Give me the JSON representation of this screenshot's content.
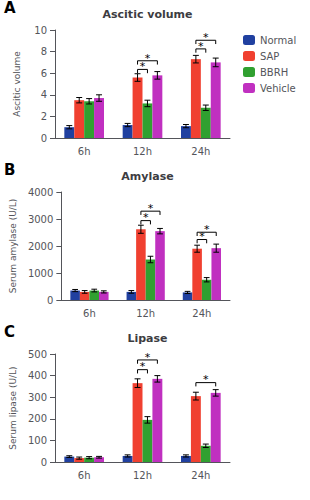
{
  "chart_data": [
    {
      "type": "bar",
      "title": "Ascitic volume",
      "y_label": "Ascitic volume",
      "categories": [
        "6h",
        "12h",
        "24h"
      ],
      "series": [
        {
          "name": "Normal",
          "color": "#2040a0",
          "values": [
            1.0,
            1.2,
            1.1
          ],
          "errors": [
            0.15,
            0.15,
            0.15
          ]
        },
        {
          "name": "SAP",
          "color": "#f04030",
          "values": [
            3.5,
            5.6,
            7.3
          ],
          "errors": [
            0.25,
            0.35,
            0.35
          ]
        },
        {
          "name": "BBRH",
          "color": "#30a030",
          "values": [
            3.4,
            3.2,
            2.8
          ],
          "errors": [
            0.25,
            0.3,
            0.25
          ]
        },
        {
          "name": "Vehicle",
          "color": "#c030c0",
          "values": [
            3.7,
            5.8,
            7.0
          ],
          "errors": [
            0.3,
            0.35,
            0.4
          ]
        }
      ],
      "ylim": [
        0,
        10
      ],
      "yticks": [
        0,
        2,
        4,
        6,
        8,
        10
      ],
      "grid": false,
      "legend": "right",
      "annotations": [
        {
          "text": "A"
        },
        {
          "text": "*",
          "category": "12h",
          "from": "SAP",
          "to": "BBRH",
          "y": 6.0
        },
        {
          "text": "*",
          "category": "12h",
          "from": "SAP",
          "to": "Vehicle",
          "y": 6.8
        },
        {
          "text": "*",
          "category": "24h",
          "from": "SAP",
          "to": "BBRH",
          "y": 7.9
        },
        {
          "text": "*",
          "category": "24h",
          "from": "SAP",
          "to": "Vehicle",
          "y": 8.7
        }
      ]
    },
    {
      "type": "bar",
      "title": "Amylase",
      "y_label": "Serum amylase (U/L)",
      "categories": [
        "6h",
        "12h",
        "24h"
      ],
      "series": [
        {
          "name": "Normal",
          "color": "#2040a0",
          "values": [
            350,
            300,
            280
          ],
          "errors": [
            40,
            50,
            40
          ]
        },
        {
          "name": "SAP",
          "color": "#f04030",
          "values": [
            300,
            2620,
            1900
          ],
          "errors": [
            50,
            150,
            130
          ]
        },
        {
          "name": "BBRH",
          "color": "#30a030",
          "values": [
            350,
            1500,
            750
          ],
          "errors": [
            50,
            120,
            80
          ]
        },
        {
          "name": "Vehicle",
          "color": "#c030c0",
          "values": [
            300,
            2550,
            1920
          ],
          "errors": [
            40,
            100,
            150
          ]
        }
      ],
      "ylim": [
        0,
        4000
      ],
      "yticks": [
        0,
        1000,
        2000,
        3000,
        4000
      ],
      "grid": false,
      "annotations": [
        {
          "text": "B"
        },
        {
          "text": "*",
          "category": "12h",
          "from": "SAP",
          "to": "BBRH",
          "y": 2800
        },
        {
          "text": "*",
          "category": "12h",
          "from": "SAP",
          "to": "Vehicle",
          "y": 3150
        },
        {
          "text": "*",
          "category": "24h",
          "from": "SAP",
          "to": "BBRH",
          "y": 2100
        },
        {
          "text": "*",
          "category": "24h",
          "from": "SAP",
          "to": "Vehicle",
          "y": 2370
        }
      ]
    },
    {
      "type": "bar",
      "title": "Lipase",
      "y_label": "Serum lipase (U/L)",
      "categories": [
        "6h",
        "12h",
        "24h"
      ],
      "series": [
        {
          "name": "Normal",
          "color": "#2040a0",
          "values": [
            25,
            28,
            28
          ],
          "errors": [
            4,
            5,
            5
          ]
        },
        {
          "name": "SAP",
          "color": "#f04030",
          "values": [
            18,
            365,
            305
          ],
          "errors": [
            5,
            20,
            18
          ]
        },
        {
          "name": "BBRH",
          "color": "#30a030",
          "values": [
            20,
            195,
            75
          ],
          "errors": [
            5,
            15,
            8
          ]
        },
        {
          "name": "Vehicle",
          "color": "#c030c0",
          "values": [
            22,
            385,
            320
          ],
          "errors": [
            4,
            15,
            15
          ]
        }
      ],
      "ylim": [
        0,
        500
      ],
      "yticks": [
        0,
        100,
        200,
        300,
        400,
        500
      ],
      "grid": false,
      "annotations": [
        {
          "text": "C"
        },
        {
          "text": "*",
          "category": "12h",
          "from": "SAP",
          "to": "BBRH",
          "y": 410
        },
        {
          "text": "*",
          "category": "12h",
          "from": "SAP",
          "to": "Vehicle",
          "y": 455
        },
        {
          "text": "*",
          "category": "24h",
          "from": "SAP",
          "to": "Vehicle",
          "y": 350
        }
      ]
    }
  ]
}
